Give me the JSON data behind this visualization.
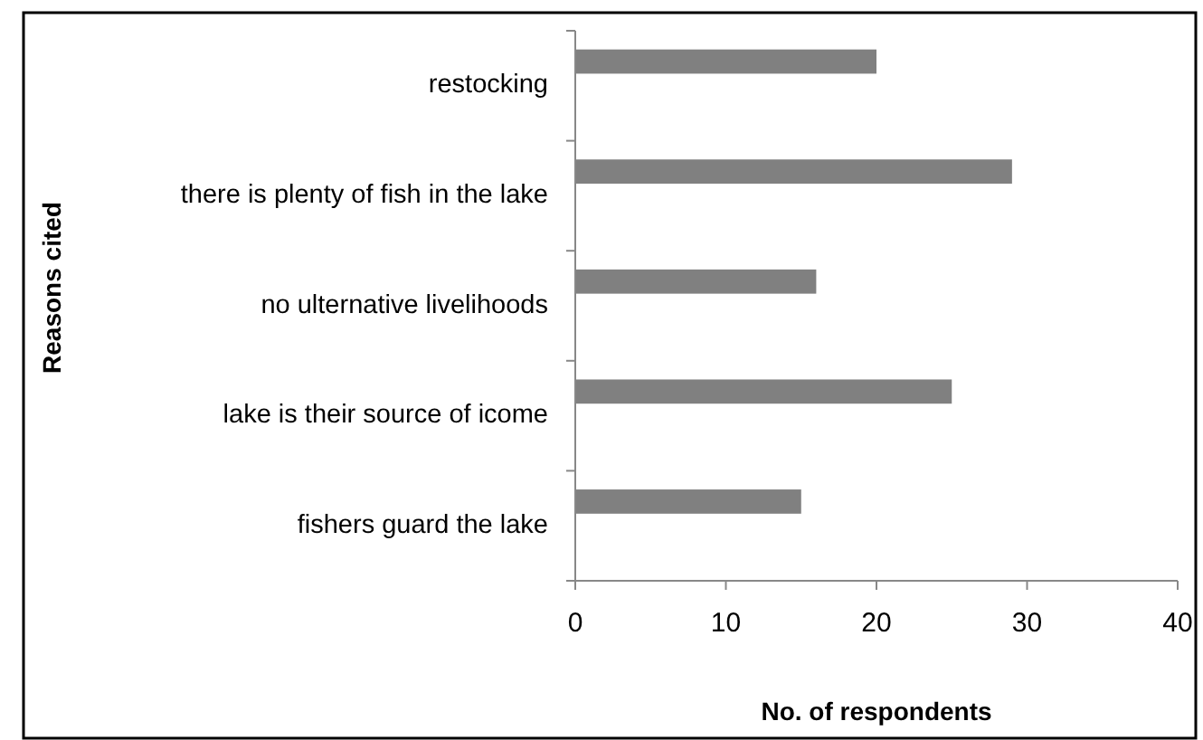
{
  "chart_data": {
    "type": "bar",
    "orientation": "horizontal",
    "xlabel": "No. of respondents",
    "ylabel": "Reasons cited",
    "categories": [
      "restocking",
      "there is plenty of fish in the lake",
      "no ulternative livelihoods",
      "lake is their source of icome",
      "fishers guard the lake"
    ],
    "values": [
      20,
      29,
      16,
      25,
      15
    ],
    "color": "#808080",
    "xlim": [
      0,
      40
    ],
    "xticks": [
      0,
      10,
      20,
      30,
      40
    ],
    "grid": false
  }
}
